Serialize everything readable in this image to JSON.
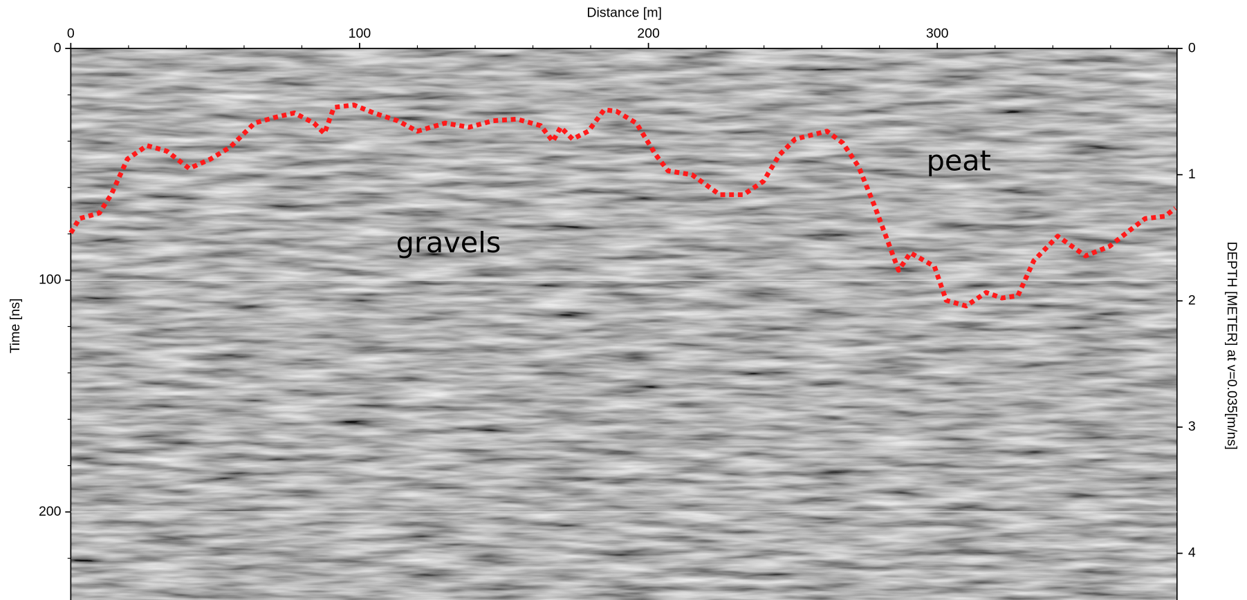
{
  "chart_data": {
    "type": "line",
    "xlabel": "Distance [m]",
    "ylabel": "Time [ns]",
    "y2label": "DEPTH [METER] at v=0.035[m/ns]",
    "xlim": [
      0,
      383
    ],
    "xticks": [
      0,
      100,
      200,
      300
    ],
    "xminorticks": [
      20,
      40,
      60,
      80,
      120,
      140,
      160,
      180,
      220,
      240,
      260,
      280,
      320,
      340,
      360,
      380
    ],
    "ylim": [
      0,
      238
    ],
    "yticks": [
      0,
      100,
      200
    ],
    "yminorticks": [
      20,
      40,
      60,
      80,
      120,
      140,
      160,
      180,
      220
    ],
    "y2lim": [
      0,
      4.37
    ],
    "y2ticks": [
      0,
      1,
      2,
      3,
      4
    ],
    "y_inverted": true,
    "color": "#ff1a1a",
    "x": [
      0,
      3.0,
      9.9,
      14.0,
      19.6,
      26.4,
      33.3,
      41.0,
      48.4,
      55.3,
      63.6,
      70.5,
      77.4,
      84.2,
      87.8,
      91.1,
      98.0,
      104.9,
      113.2,
      120.0,
      129.6,
      137.9,
      146.1,
      154.4,
      162.7,
      166.9,
      169.6,
      173.7,
      179.2,
      184.7,
      188.9,
      195.8,
      202.6,
      206.8,
      215.1,
      224.7,
      232.9,
      239.8,
      245.3,
      250.8,
      261.8,
      267.3,
      272.8,
      278.4,
      282.5,
      286.6,
      290.7,
      299.0,
      303.1,
      310.0,
      316.9,
      322.4,
      327.9,
      333.4,
      341.7,
      351.3,
      359.6,
      366.5,
      372.0,
      378.9,
      382.4
    ],
    "values": [
      79.6,
      73.4,
      71.0,
      63.1,
      47.7,
      41.9,
      44.3,
      51.8,
      47.7,
      42.5,
      32.2,
      29.8,
      27.8,
      32.2,
      36.7,
      25.4,
      24.4,
      27.8,
      31.2,
      35.7,
      32.2,
      34.0,
      31.2,
      30.5,
      33.3,
      40.1,
      34.0,
      39.1,
      35.7,
      26.4,
      27.1,
      32.2,
      46.0,
      52.8,
      54.5,
      63.1,
      63.1,
      57.3,
      46.0,
      39.1,
      35.7,
      40.8,
      51.1,
      68.3,
      82.0,
      95.7,
      88.2,
      94.0,
      108.7,
      111.1,
      105.3,
      107.7,
      106.7,
      91.6,
      81.0,
      89.5,
      85.4,
      78.6,
      73.4,
      72.4,
      68.9
    ],
    "annotations": [
      "gravels",
      "peat"
    ]
  }
}
